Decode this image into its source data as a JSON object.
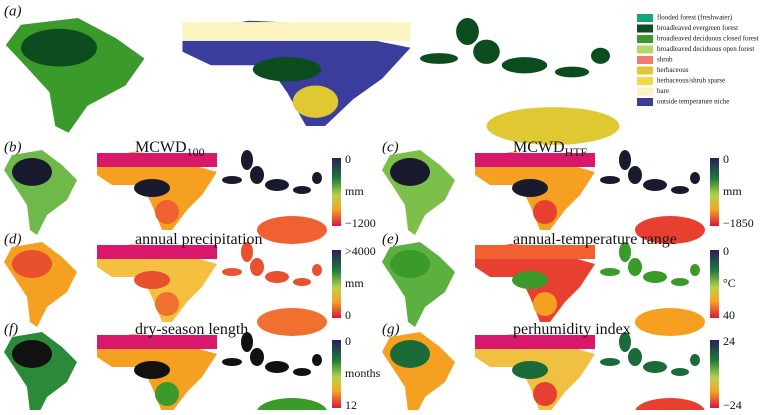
{
  "panels": [
    {
      "label": "(a)",
      "legend": [
        {
          "label": "flooded forest (freshwater)",
          "color": "#19a57c"
        },
        {
          "label": "broadleaved evergreen forest",
          "color": "#0b4d1e"
        },
        {
          "label": "broadleaved deciduous closed forest",
          "color": "#3a9a2a"
        },
        {
          "label": "broadleaved deciduous open forest",
          "color": "#b5d66a"
        },
        {
          "label": "shrub",
          "color": "#f27a6e"
        },
        {
          "label": "herbaceous",
          "color": "#e0c832"
        },
        {
          "label": "herbaceous/shrub sparse",
          "color": "#f5d84a"
        },
        {
          "label": "bare",
          "color": "#fbf3c0"
        },
        {
          "label": "outside temperature niche",
          "color": "#3a3d9c"
        }
      ]
    },
    {
      "label": "(b)",
      "title": "MCWD",
      "title_sub": "100",
      "colorbar": {
        "top": "0",
        "unit": "mm",
        "bottom": "−1200"
      }
    },
    {
      "label": "(c)",
      "title": "MCWD",
      "title_sub": "HTF",
      "colorbar": {
        "top": "0",
        "unit": "mm",
        "bottom": "−1850"
      }
    },
    {
      "label": "(d)",
      "title": "annual precipitation",
      "colorbar": {
        "top": ">4000",
        "unit": "mm",
        "bottom": "0"
      }
    },
    {
      "label": "(e)",
      "title": "annual-temperature range",
      "colorbar": {
        "top": "0",
        "unit": "°C",
        "bottom": "40"
      }
    },
    {
      "label": "(f)",
      "title": "dry-season length",
      "colorbar": {
        "top": "0",
        "unit": "months",
        "bottom": "12"
      }
    },
    {
      "label": "(g)",
      "title": "perhumidity index",
      "colorbar": {
        "top": "24",
        "bottom": "−24"
      }
    }
  ]
}
